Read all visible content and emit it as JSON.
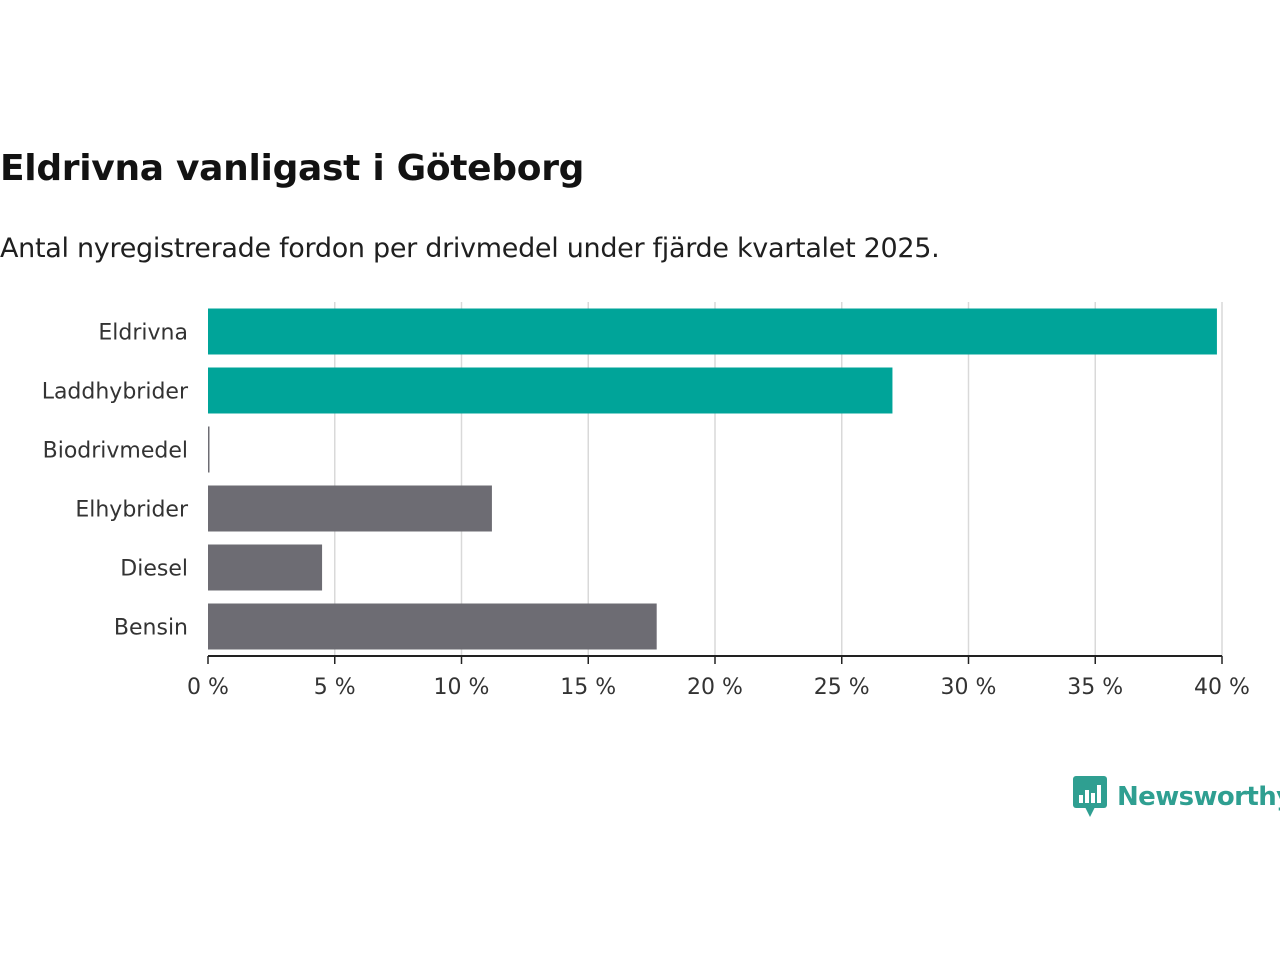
{
  "header": {
    "title": "Eldrivna vanligast i Göteborg",
    "subtitle": "Antal nyregistrerade fordon per drivmedel under fjärde kvartalet 2025."
  },
  "chart_data": {
    "type": "bar",
    "orientation": "horizontal",
    "title": "Eldrivna vanligast i Göteborg",
    "subtitle": "Antal nyregistrerade fordon per drivmedel under fjärde kvartalet 2025.",
    "xlabel": "",
    "ylabel": "",
    "categories": [
      "Eldrivna",
      "Laddhybrider",
      "Biodrivmedel",
      "Elhybrider",
      "Diesel",
      "Bensin"
    ],
    "values": [
      39.8,
      27.0,
      0.05,
      11.2,
      4.5,
      17.7
    ],
    "unit": "%",
    "xlim": [
      0,
      40
    ],
    "ticks": [
      0,
      5,
      10,
      15,
      20,
      25,
      30,
      35,
      40
    ],
    "tick_labels": [
      "0 %",
      "5 %",
      "10 %",
      "15 %",
      "20 %",
      "25 %",
      "30 %",
      "35 %",
      "40 %"
    ],
    "grid": true,
    "bar_colors": [
      "#00a499",
      "#00a499",
      "#6d6c73",
      "#6d6c73",
      "#6d6c73",
      "#6d6c73"
    ]
  },
  "branding": {
    "name": "Newsworthy",
    "icon": "newsworthy-logo-icon",
    "color": "#2f9f91"
  },
  "colors": {
    "grid": "#d9d9d9",
    "axis": "#222222"
  }
}
